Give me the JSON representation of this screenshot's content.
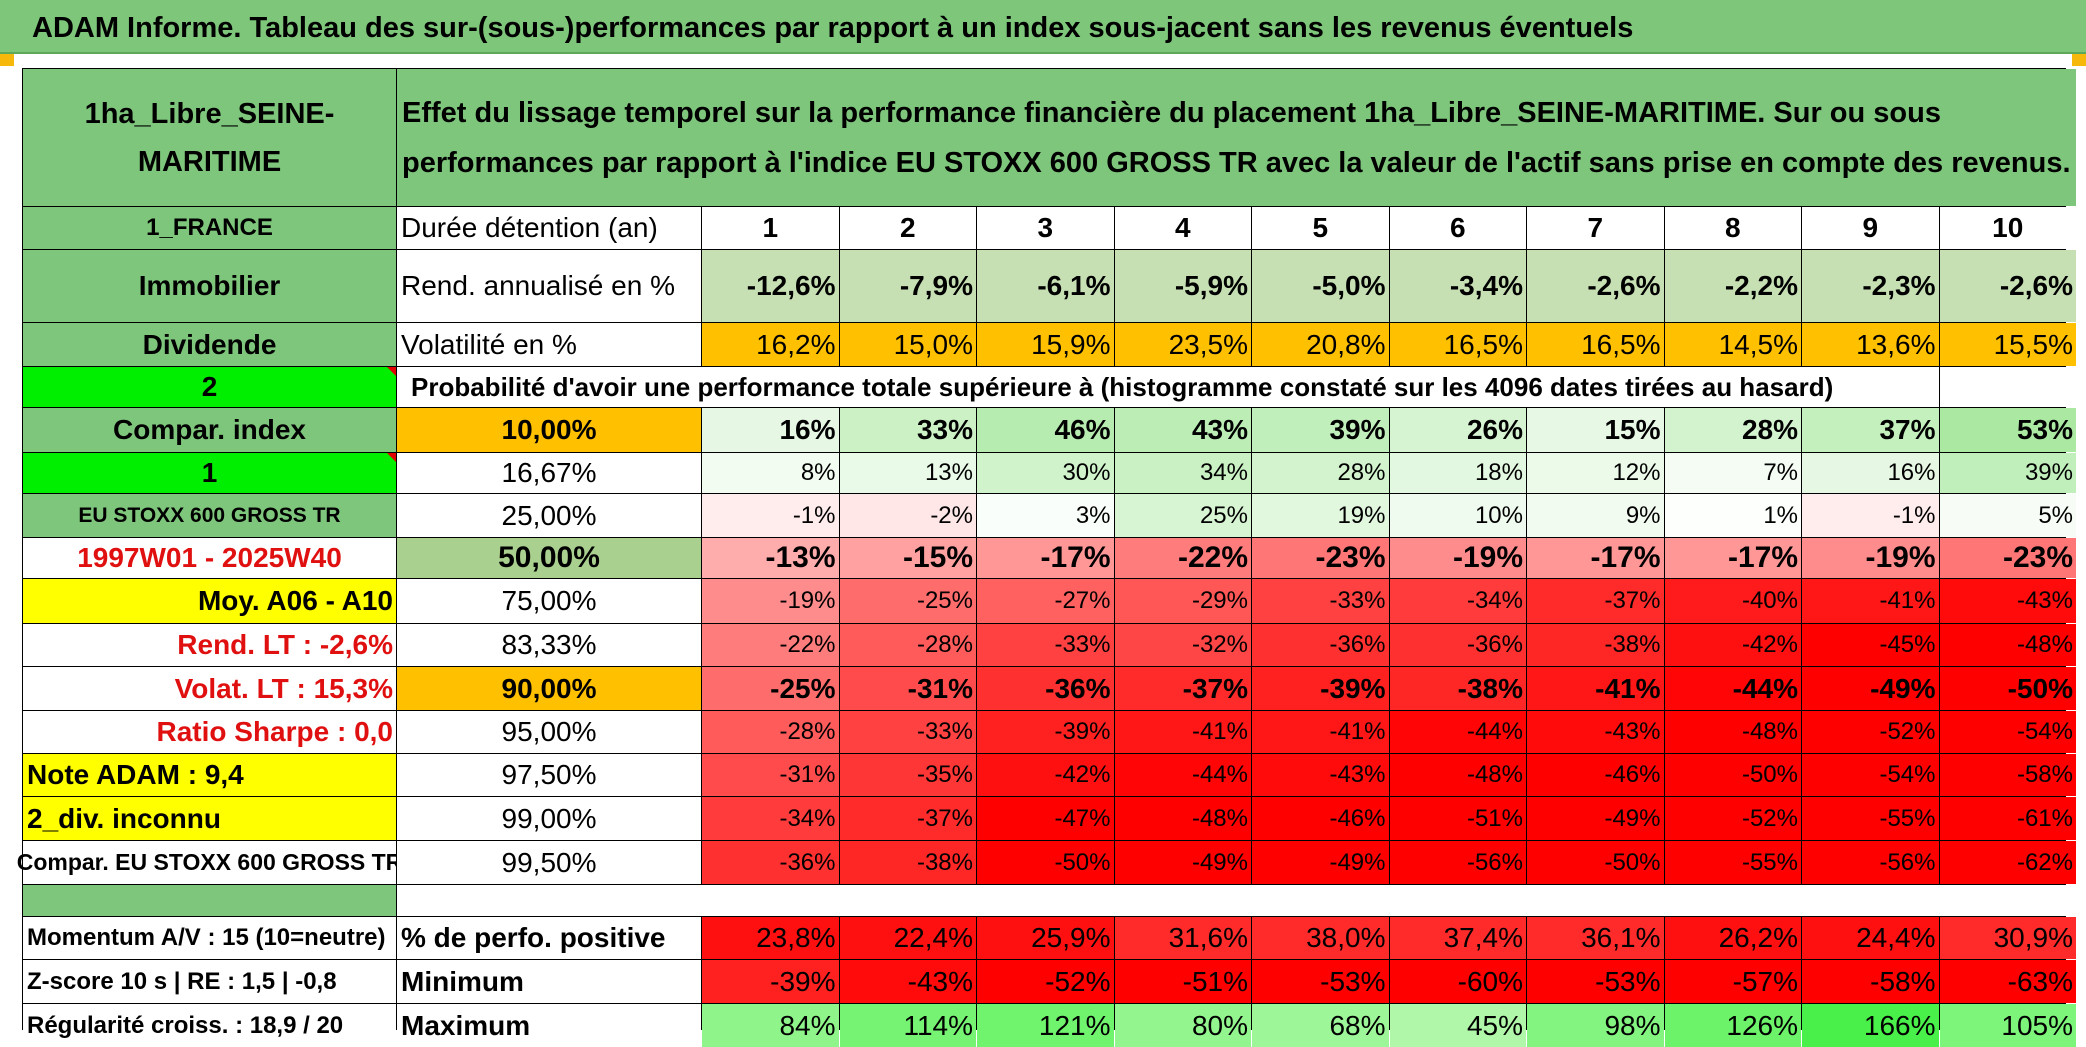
{
  "banner": "ADAM Informe. Tableau des sur-(sous-)performances par rapport à un index sous-jacent sans les revenus éventuels",
  "header": {
    "asset": "1ha_Libre_SEINE-MARITIME",
    "description": "Effet du lissage temporel sur la performance financière du placement 1ha_Libre_SEINE-MARITIME. Sur ou sous performances par rapport à l'indice EU STOXX 600 GROSS TR avec la valeur de l'actif sans prise en compte des revenus."
  },
  "left_labels": {
    "country": "1_FRANCE",
    "category": "Immobilier",
    "income": "Dividende",
    "selector_a": "2",
    "compar_index": "Compar. index",
    "selector_b": "1",
    "index_name": "EU STOXX 600 GROSS TR",
    "period": "1997W01 - 2025W40",
    "moy": "Moy. A06 - A10",
    "rend_lt": "Rend. LT :    -2,6%",
    "volat_lt": "Volat. LT :    15,3%",
    "sharpe": "Ratio Sharpe :    0,0",
    "note": "Note ADAM : 9,4",
    "div": "2_div. inconnu",
    "compar_full": "Compar. EU STOXX 600 GROSS TR"
  },
  "metrics": {
    "duration_label": "Durée détention (an)",
    "years": [
      "1",
      "2",
      "3",
      "4",
      "5",
      "6",
      "7",
      "8",
      "9",
      "10"
    ],
    "rend_label": "Rend. annualisé en %",
    "rend": [
      "-12,6%",
      "-7,9%",
      "-6,1%",
      "-5,9%",
      "-5,0%",
      "-3,4%",
      "-2,6%",
      "-2,2%",
      "-2,3%",
      "-2,6%"
    ],
    "vol_label": "Volatilité en %",
    "vol": [
      "16,2%",
      "15,0%",
      "15,9%",
      "23,5%",
      "20,8%",
      "16,5%",
      "16,5%",
      "14,5%",
      "13,6%",
      "15,5%"
    ]
  },
  "prob_title": "Probabilité d'avoir une performance totale supérieure à (histogramme constaté sur les 4096 dates tirées au hasard)",
  "prob_rows": [
    {
      "threshold": "10,00%",
      "values": [
        "16%",
        "33%",
        "46%",
        "43%",
        "39%",
        "26%",
        "15%",
        "28%",
        "37%",
        "53%"
      ]
    },
    {
      "threshold": "16,67%",
      "values": [
        "8%",
        "13%",
        "30%",
        "34%",
        "28%",
        "18%",
        "12%",
        "7%",
        "16%",
        "39%"
      ]
    },
    {
      "threshold": "25,00%",
      "values": [
        "-1%",
        "-2%",
        "3%",
        "25%",
        "19%",
        "10%",
        "9%",
        "1%",
        "-1%",
        "5%"
      ]
    },
    {
      "threshold": "50,00%",
      "values": [
        "-13%",
        "-15%",
        "-17%",
        "-22%",
        "-23%",
        "-19%",
        "-17%",
        "-17%",
        "-19%",
        "-23%"
      ]
    },
    {
      "threshold": "75,00%",
      "values": [
        "-19%",
        "-25%",
        "-27%",
        "-29%",
        "-33%",
        "-34%",
        "-37%",
        "-40%",
        "-41%",
        "-43%"
      ]
    },
    {
      "threshold": "83,33%",
      "values": [
        "-22%",
        "-28%",
        "-33%",
        "-32%",
        "-36%",
        "-36%",
        "-38%",
        "-42%",
        "-45%",
        "-48%"
      ]
    },
    {
      "threshold": "90,00%",
      "values": [
        "-25%",
        "-31%",
        "-36%",
        "-37%",
        "-39%",
        "-38%",
        "-41%",
        "-44%",
        "-49%",
        "-50%"
      ]
    },
    {
      "threshold": "95,00%",
      "values": [
        "-28%",
        "-33%",
        "-39%",
        "-41%",
        "-41%",
        "-44%",
        "-43%",
        "-48%",
        "-52%",
        "-54%"
      ]
    },
    {
      "threshold": "97,50%",
      "values": [
        "-31%",
        "-35%",
        "-42%",
        "-44%",
        "-43%",
        "-48%",
        "-46%",
        "-50%",
        "-54%",
        "-58%"
      ]
    },
    {
      "threshold": "99,00%",
      "values": [
        "-34%",
        "-37%",
        "-47%",
        "-48%",
        "-46%",
        "-51%",
        "-49%",
        "-52%",
        "-55%",
        "-61%"
      ]
    },
    {
      "threshold": "99,50%",
      "values": [
        "-36%",
        "-38%",
        "-50%",
        "-49%",
        "-49%",
        "-56%",
        "-50%",
        "-55%",
        "-56%",
        "-62%"
      ]
    }
  ],
  "footer": {
    "momentum": "Momentum A/V : 15 (10=neutre)",
    "zscore": "Z-score 10 s | RE : 1,5 | -0,8",
    "regularite": "Régularité croiss. : 18,9 / 20",
    "pos_label": "% de perfo. positive",
    "pos": [
      "23,8%",
      "22,4%",
      "25,9%",
      "31,6%",
      "38,0%",
      "37,4%",
      "36,1%",
      "26,2%",
      "24,4%",
      "30,9%"
    ],
    "min_label": "Minimum",
    "min": [
      "-39%",
      "-43%",
      "-52%",
      "-51%",
      "-53%",
      "-60%",
      "-53%",
      "-57%",
      "-58%",
      "-63%"
    ],
    "max_label": "Maximum",
    "max": [
      "84%",
      "114%",
      "121%",
      "80%",
      "68%",
      "45%",
      "98%",
      "126%",
      "166%",
      "105%"
    ]
  },
  "colors": {
    "header_green": "#7ec67b",
    "bright_green": "#00ee00",
    "yellow": "#ffff00",
    "orange": "#ffc000",
    "red": "#ff0000",
    "light_green": "#c6e0b4"
  }
}
